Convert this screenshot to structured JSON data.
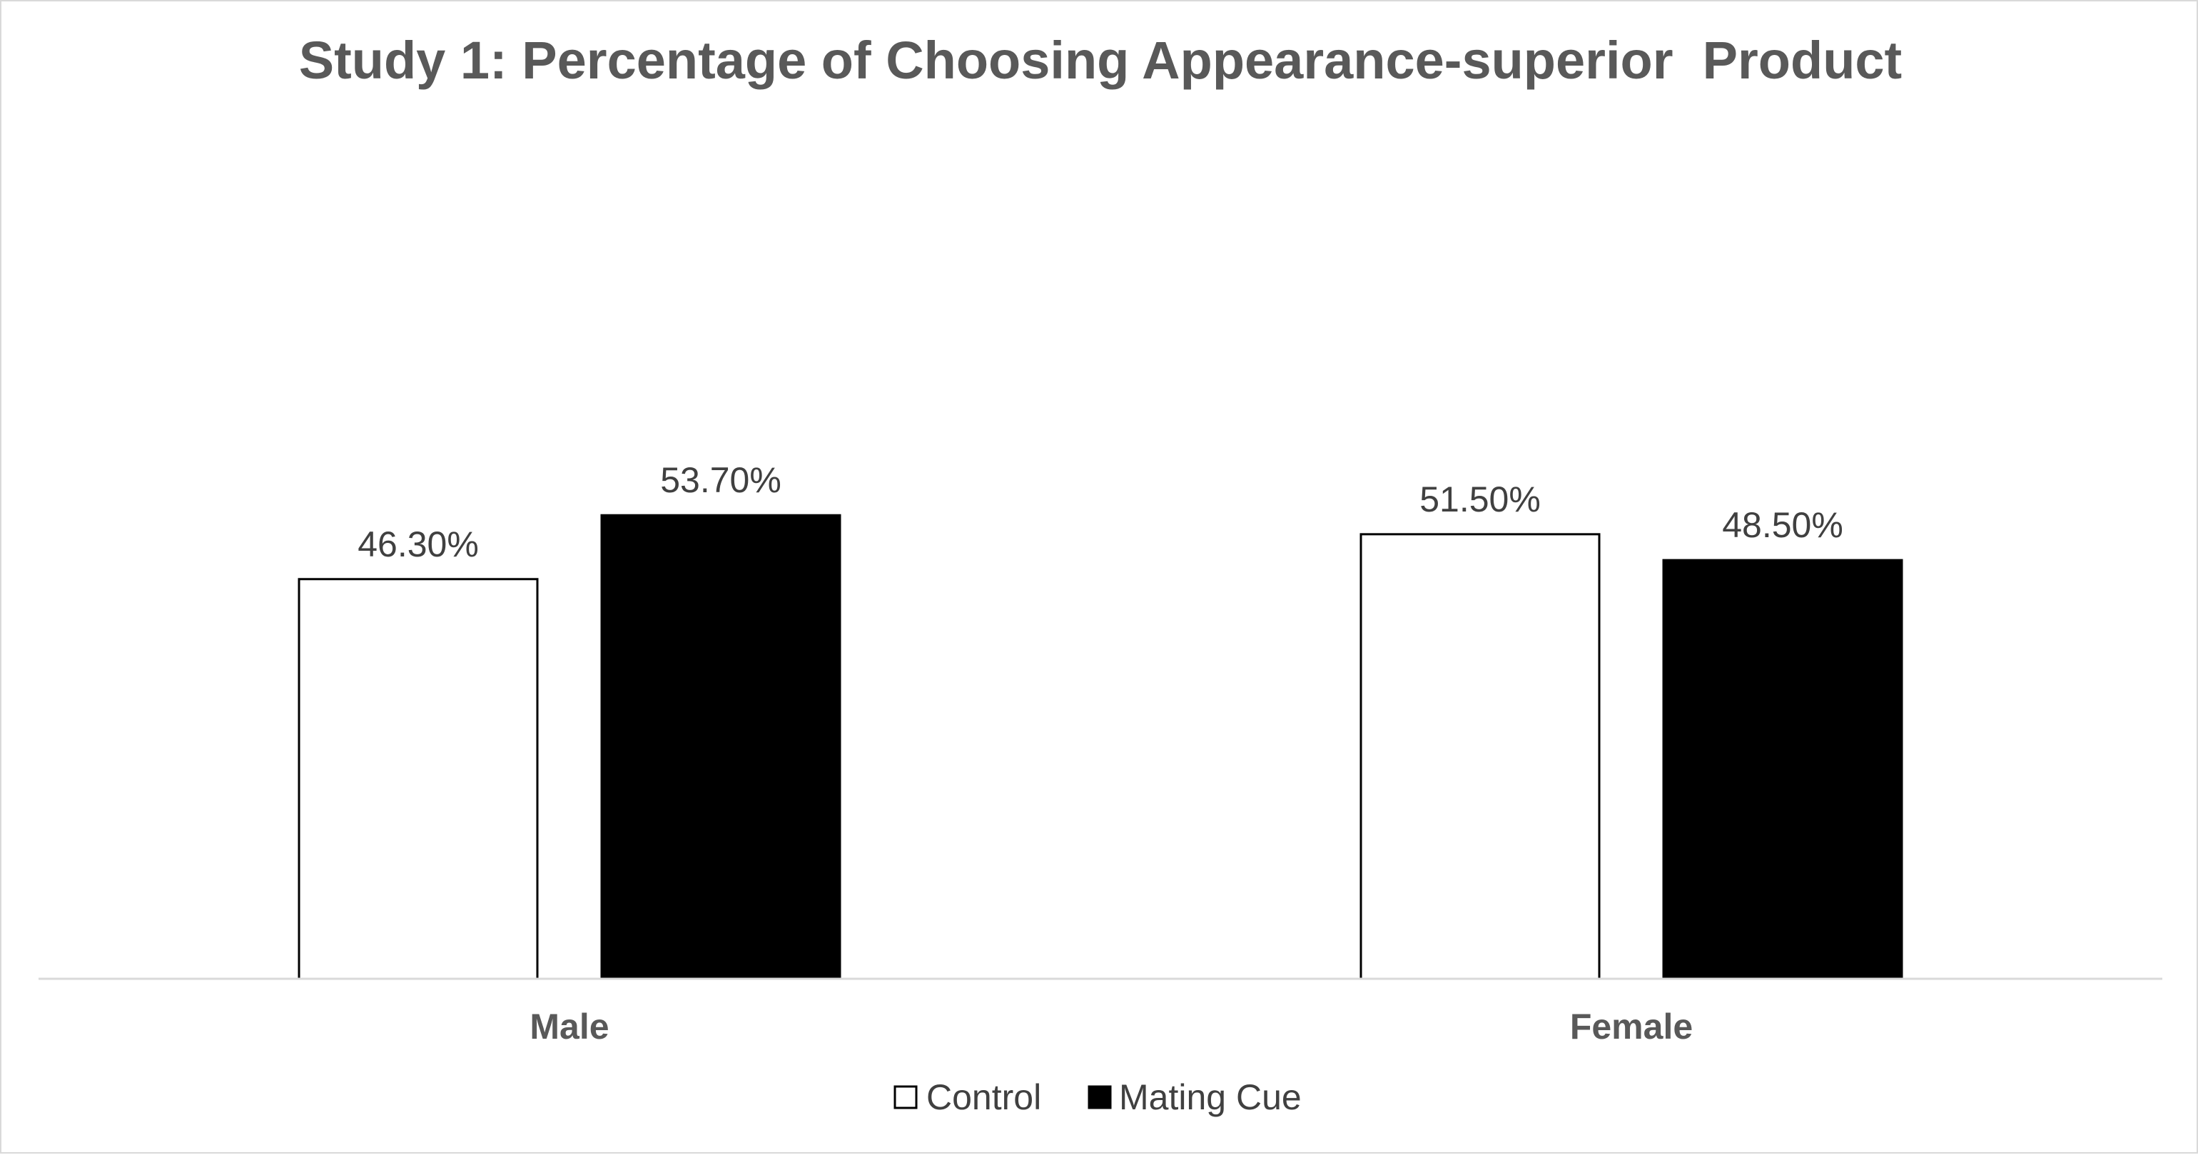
{
  "chart_data": {
    "type": "bar",
    "title": "Study 1: Percentage of Choosing Appearance-superior  Product",
    "categories": [
      "Male",
      "Female"
    ],
    "series": [
      {
        "name": "Control",
        "values": [
          46.3,
          51.5
        ],
        "labels": [
          "46.30%",
          "51.50%"
        ],
        "color": "#ffffff",
        "stroke": "#000000"
      },
      {
        "name": "Mating Cue",
        "values": [
          53.7,
          48.5
        ],
        "labels": [
          "53.70%",
          "48.50%"
        ],
        "color": "#000000",
        "stroke": "#000000"
      }
    ],
    "ylim": [
      0,
      100
    ],
    "grid": false,
    "legend": "bottom",
    "axis_color": "#d9d9d9"
  }
}
